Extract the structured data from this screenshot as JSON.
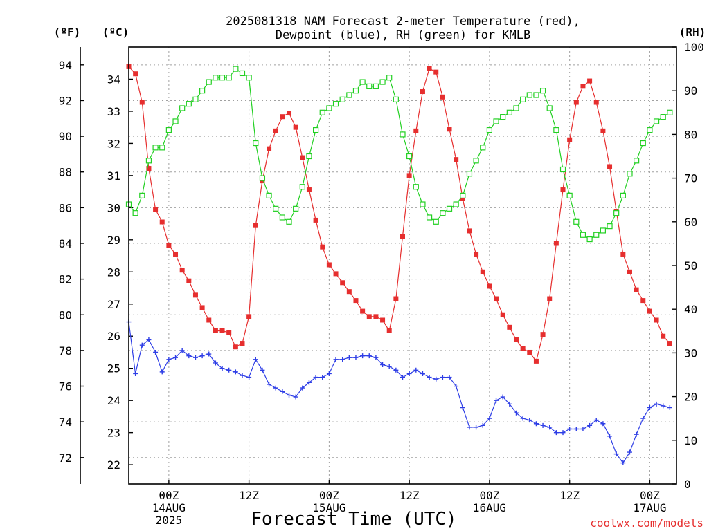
{
  "title_line1": "2025081318 NAM Forecast 2-meter Temperature (red),",
  "title_line2": "Dewpoint (blue), RH (green) for KMLB",
  "unit_f": "(ºF)",
  "unit_c": "(ºC)",
  "unit_rh": "(RH)",
  "xlabel": "Forecast Time (UTC)",
  "credit": "coolwx.com/models",
  "colors": {
    "temperature": "#e62e2e",
    "dewpoint": "#2e3ee6",
    "rh": "#22d022",
    "grid": "#a0a0a0",
    "axis": "#000000",
    "credit": "#e62e2e"
  },
  "chart_data": {
    "type": "line",
    "title": "2025081318 NAM Forecast 2-meter Temperature (red), Dewpoint (blue), RH (green) for KMLB",
    "xlabel": "Forecast Time (UTC)",
    "x_start": "2025-08-13 18Z",
    "x_end": "2025-08-17 04Z",
    "time_step_hours": 1,
    "xlim_hours": [
      0,
      82
    ],
    "x_ticks": [
      {
        "hour": 6,
        "lines": [
          "00Z",
          "14AUG",
          "2025"
        ]
      },
      {
        "hour": 18,
        "lines": [
          "12Z"
        ]
      },
      {
        "hour": 30,
        "lines": [
          "00Z",
          "15AUG"
        ]
      },
      {
        "hour": 42,
        "lines": [
          "12Z"
        ]
      },
      {
        "hour": 54,
        "lines": [
          "00Z",
          "16AUG"
        ]
      },
      {
        "hour": 66,
        "lines": [
          "12Z"
        ]
      },
      {
        "hour": 78,
        "lines": [
          "00Z",
          "17AUG"
        ]
      }
    ],
    "y_left_outer": {
      "label": "(ºF)",
      "lim": [
        70.52,
        95.0
      ],
      "ticks": [
        72,
        74,
        76,
        78,
        80,
        82,
        84,
        86,
        88,
        90,
        92,
        94
      ]
    },
    "y_left_inner": {
      "label": "(ºC)",
      "lim": [
        21.4,
        35.0
      ],
      "ticks": [
        22,
        23,
        24,
        25,
        26,
        27,
        28,
        29,
        30,
        31,
        32,
        33,
        34
      ]
    },
    "y_right": {
      "label": "(RH)",
      "lim": [
        0,
        100
      ],
      "ticks": [
        0,
        10,
        20,
        30,
        40,
        50,
        60,
        70,
        80,
        90,
        100
      ]
    },
    "grid": true,
    "series": [
      {
        "axis": "fahrenheit",
        "marker": "filled-square",
        "values": [
          93.9,
          93.5,
          91.9,
          88.2,
          85.9,
          85.2,
          83.9,
          83.4,
          82.5,
          81.9,
          81.1,
          80.4,
          79.7,
          79.1,
          79.1,
          79.0,
          78.2,
          78.4,
          79.9,
          85.0,
          87.5,
          89.3,
          90.3,
          91.1,
          91.3,
          90.5,
          88.8,
          87.0,
          85.3,
          83.8,
          82.8,
          82.3,
          81.8,
          81.3,
          80.8,
          80.2,
          79.9,
          79.9,
          79.7,
          79.1,
          80.9,
          84.4,
          87.8,
          90.3,
          92.5,
          93.8,
          93.6,
          92.2,
          90.4,
          88.7,
          86.5,
          84.7,
          83.4,
          82.4,
          81.6,
          80.9,
          80.0,
          79.3,
          78.6,
          78.1,
          77.9,
          77.4,
          78.9,
          80.9,
          84.0,
          87.0,
          89.8,
          91.9,
          92.8,
          93.1,
          91.9,
          90.3,
          88.3,
          85.8,
          83.4,
          82.4,
          81.4,
          80.8,
          80.2,
          79.7,
          78.8,
          78.4
        ]
      },
      {
        "axis": "fahrenheit",
        "marker": "plus",
        "values": [
          79.6,
          76.7,
          78.3,
          78.6,
          77.9,
          76.8,
          77.5,
          77.6,
          78.0,
          77.7,
          77.6,
          77.7,
          77.8,
          77.3,
          77.0,
          76.9,
          76.8,
          76.6,
          76.5,
          77.5,
          76.9,
          76.1,
          75.9,
          75.7,
          75.5,
          75.4,
          75.9,
          76.2,
          76.5,
          76.5,
          76.7,
          77.5,
          77.5,
          77.6,
          77.6,
          77.7,
          77.7,
          77.6,
          77.2,
          77.1,
          76.9,
          76.5,
          76.7,
          76.9,
          76.7,
          76.5,
          76.4,
          76.5,
          76.5,
          76.0,
          74.8,
          73.7,
          73.7,
          73.8,
          74.2,
          75.2,
          75.4,
          75.0,
          74.5,
          74.2,
          74.1,
          73.9,
          73.8,
          73.7,
          73.4,
          73.4,
          73.6,
          73.6,
          73.6,
          73.8,
          74.1,
          73.9,
          73.2,
          72.2,
          71.7,
          72.3,
          73.3,
          74.2,
          74.8,
          75.0,
          74.9,
          74.8
        ]
      },
      {
        "axis": "rh",
        "marker": "open-square",
        "values": [
          64,
          62,
          66,
          74,
          77,
          77,
          81,
          83,
          86,
          87,
          88,
          90,
          92,
          93,
          93,
          93,
          95,
          94,
          93,
          78,
          70,
          66,
          63,
          61,
          60,
          63,
          68,
          75,
          81,
          85,
          86,
          87,
          88,
          89,
          90,
          92,
          91,
          91,
          92,
          93,
          88,
          80,
          75,
          68,
          64,
          61,
          60,
          62,
          63,
          64,
          66,
          71,
          74,
          77,
          81,
          83,
          84,
          85,
          86,
          88,
          89,
          89,
          90,
          86,
          81,
          72,
          66,
          60,
          57,
          56,
          57,
          58,
          59,
          62,
          66,
          71,
          74,
          78,
          81,
          83,
          84,
          85
        ]
      }
    ]
  }
}
